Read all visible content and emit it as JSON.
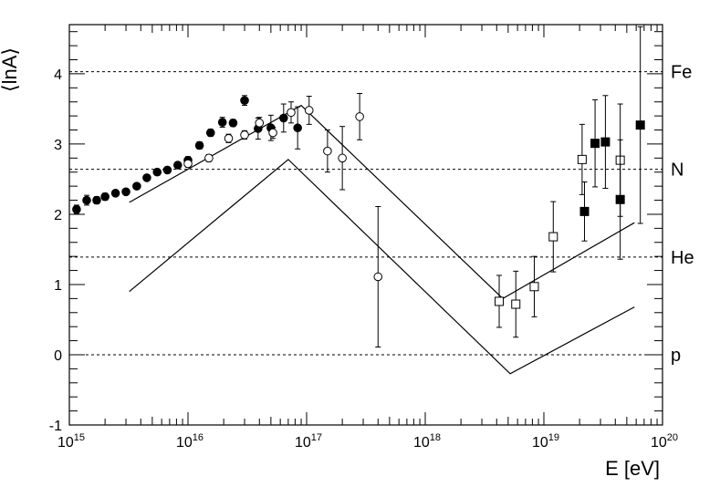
{
  "chart_data": {
    "type": "scatter",
    "title": "",
    "xlabel": "E [eV]",
    "ylabel": "⟨lnA⟩",
    "x_scale": "log",
    "xlim": [
      1000000000000000.0,
      1e+20
    ],
    "ylim": [
      -1,
      4.7
    ],
    "x_ticks": [
      {
        "value": 1000000000000000.0,
        "base": "10",
        "exp": "15"
      },
      {
        "value": 1e+16,
        "base": "10",
        "exp": "16"
      },
      {
        "value": 1e+17,
        "base": "10",
        "exp": "17"
      },
      {
        "value": 1e+18,
        "base": "10",
        "exp": "18"
      },
      {
        "value": 1e+19,
        "base": "10",
        "exp": "19"
      },
      {
        "value": 1e+20,
        "base": "10",
        "exp": "20"
      }
    ],
    "y_ticks": [
      "-1",
      "0",
      "1",
      "2",
      "3",
      "4"
    ],
    "grid": false,
    "reference_levels": [
      {
        "label": "Fe",
        "value": 4.03
      },
      {
        "label": "N",
        "value": 2.64
      },
      {
        "label": "He",
        "value": 1.39
      },
      {
        "label": "p",
        "value": 0
      }
    ],
    "model_lines": [
      {
        "points": [
          [
            3200000000000000.0,
            2.17
          ],
          [
            9e+16,
            3.55
          ],
          [
            4.5e+18,
            0.8
          ],
          [
            5.8e+19,
            1.88
          ]
        ]
      },
      {
        "points": [
          [
            3200000000000000.0,
            0.9
          ],
          [
            7e+16,
            2.78
          ],
          [
            5.2e+18,
            -0.27
          ],
          [
            5.8e+19,
            0.68
          ]
        ]
      }
    ],
    "series": [
      {
        "marker": "filled-circle",
        "points": [
          {
            "x": 1150000000000000.0,
            "y": 2.07,
            "err": 0.06
          },
          {
            "x": 1400000000000000.0,
            "y": 2.2,
            "err": 0.07
          },
          {
            "x": 1700000000000000.0,
            "y": 2.2,
            "err": 0.05
          },
          {
            "x": 2000000000000000.0,
            "y": 2.25,
            "err": 0.05
          },
          {
            "x": 2450000000000000.0,
            "y": 2.3,
            "err": 0.04
          },
          {
            "x": 3000000000000000.0,
            "y": 2.32,
            "err": 0.04
          },
          {
            "x": 3700000000000000.0,
            "y": 2.4,
            "err": 0.04
          },
          {
            "x": 4500000000000000.0,
            "y": 2.52,
            "err": 0.04
          },
          {
            "x": 5500000000000000.0,
            "y": 2.6,
            "err": 0.04
          },
          {
            "x": 6700000000000000.0,
            "y": 2.63,
            "err": 0.04
          },
          {
            "x": 8200000000000000.0,
            "y": 2.7,
            "err": 0.04
          },
          {
            "x": 1e+16,
            "y": 2.77,
            "err": 0.05
          },
          {
            "x": 1.25e+16,
            "y": 2.98,
            "err": 0.05
          },
          {
            "x": 1.55e+16,
            "y": 3.16,
            "err": 0.05
          },
          {
            "x": 1.95e+16,
            "y": 3.31,
            "err": 0.07
          },
          {
            "x": 2.4e+16,
            "y": 3.3,
            "err": 0.05
          },
          {
            "x": 3e+16,
            "y": 3.62,
            "err": 0.07
          },
          {
            "x": 3.9e+16,
            "y": 3.22,
            "err": 0.15
          },
          {
            "x": 5e+16,
            "y": 3.23,
            "err": 0.18
          },
          {
            "x": 6.4e+16,
            "y": 3.37,
            "err": 0.2
          },
          {
            "x": 8.4e+16,
            "y": 3.23,
            "err": 0.3
          }
        ]
      },
      {
        "marker": "open-circle",
        "points": [
          {
            "x": 1e+16,
            "y": 2.72,
            "err": 0.05
          },
          {
            "x": 1.5e+16,
            "y": 2.8,
            "err": 0.05
          },
          {
            "x": 2.2e+16,
            "y": 3.08,
            "err": 0.06
          },
          {
            "x": 3e+16,
            "y": 3.13,
            "err": 0.06
          },
          {
            "x": 4e+16,
            "y": 3.3,
            "err": 0.08
          },
          {
            "x": 5.2e+16,
            "y": 3.16,
            "err": 0.08
          },
          {
            "x": 7.4e+16,
            "y": 3.45,
            "err": 0.15
          },
          {
            "x": 1.05e+17,
            "y": 3.48,
            "err": 0.2
          },
          {
            "x": 1.5e+17,
            "y": 2.9,
            "err": 0.3
          },
          {
            "x": 2e+17,
            "y": 2.8,
            "err": 0.45
          },
          {
            "x": 2.8e+17,
            "y": 3.39,
            "err": 0.33
          },
          {
            "x": 4e+17,
            "y": 1.11,
            "err": 1.0
          }
        ]
      },
      {
        "marker": "open-square",
        "points": [
          {
            "x": 4.2e+18,
            "y": 0.76,
            "err": 0.37
          },
          {
            "x": 5.8e+18,
            "y": 0.72,
            "err": 0.47
          },
          {
            "x": 8.3e+18,
            "y": 0.97,
            "err": 0.43
          },
          {
            "x": 1.2e+19,
            "y": 1.68,
            "err": 0.5
          },
          {
            "x": 2.1e+19,
            "y": 2.78,
            "err": 0.5
          },
          {
            "x": 4.4e+19,
            "y": 2.77,
            "err": 0.8
          }
        ]
      },
      {
        "marker": "filled-square",
        "points": [
          {
            "x": 2.2e+19,
            "y": 2.04,
            "err": 0.42
          },
          {
            "x": 2.7e+19,
            "y": 3.01,
            "err": 0.62
          },
          {
            "x": 3.3e+19,
            "y": 3.03,
            "err": 0.66
          },
          {
            "x": 4.4e+19,
            "y": 2.21,
            "err": 0.85
          },
          {
            "x": 6.5e+19,
            "y": 3.27,
            "err": 1.4
          }
        ]
      }
    ]
  }
}
